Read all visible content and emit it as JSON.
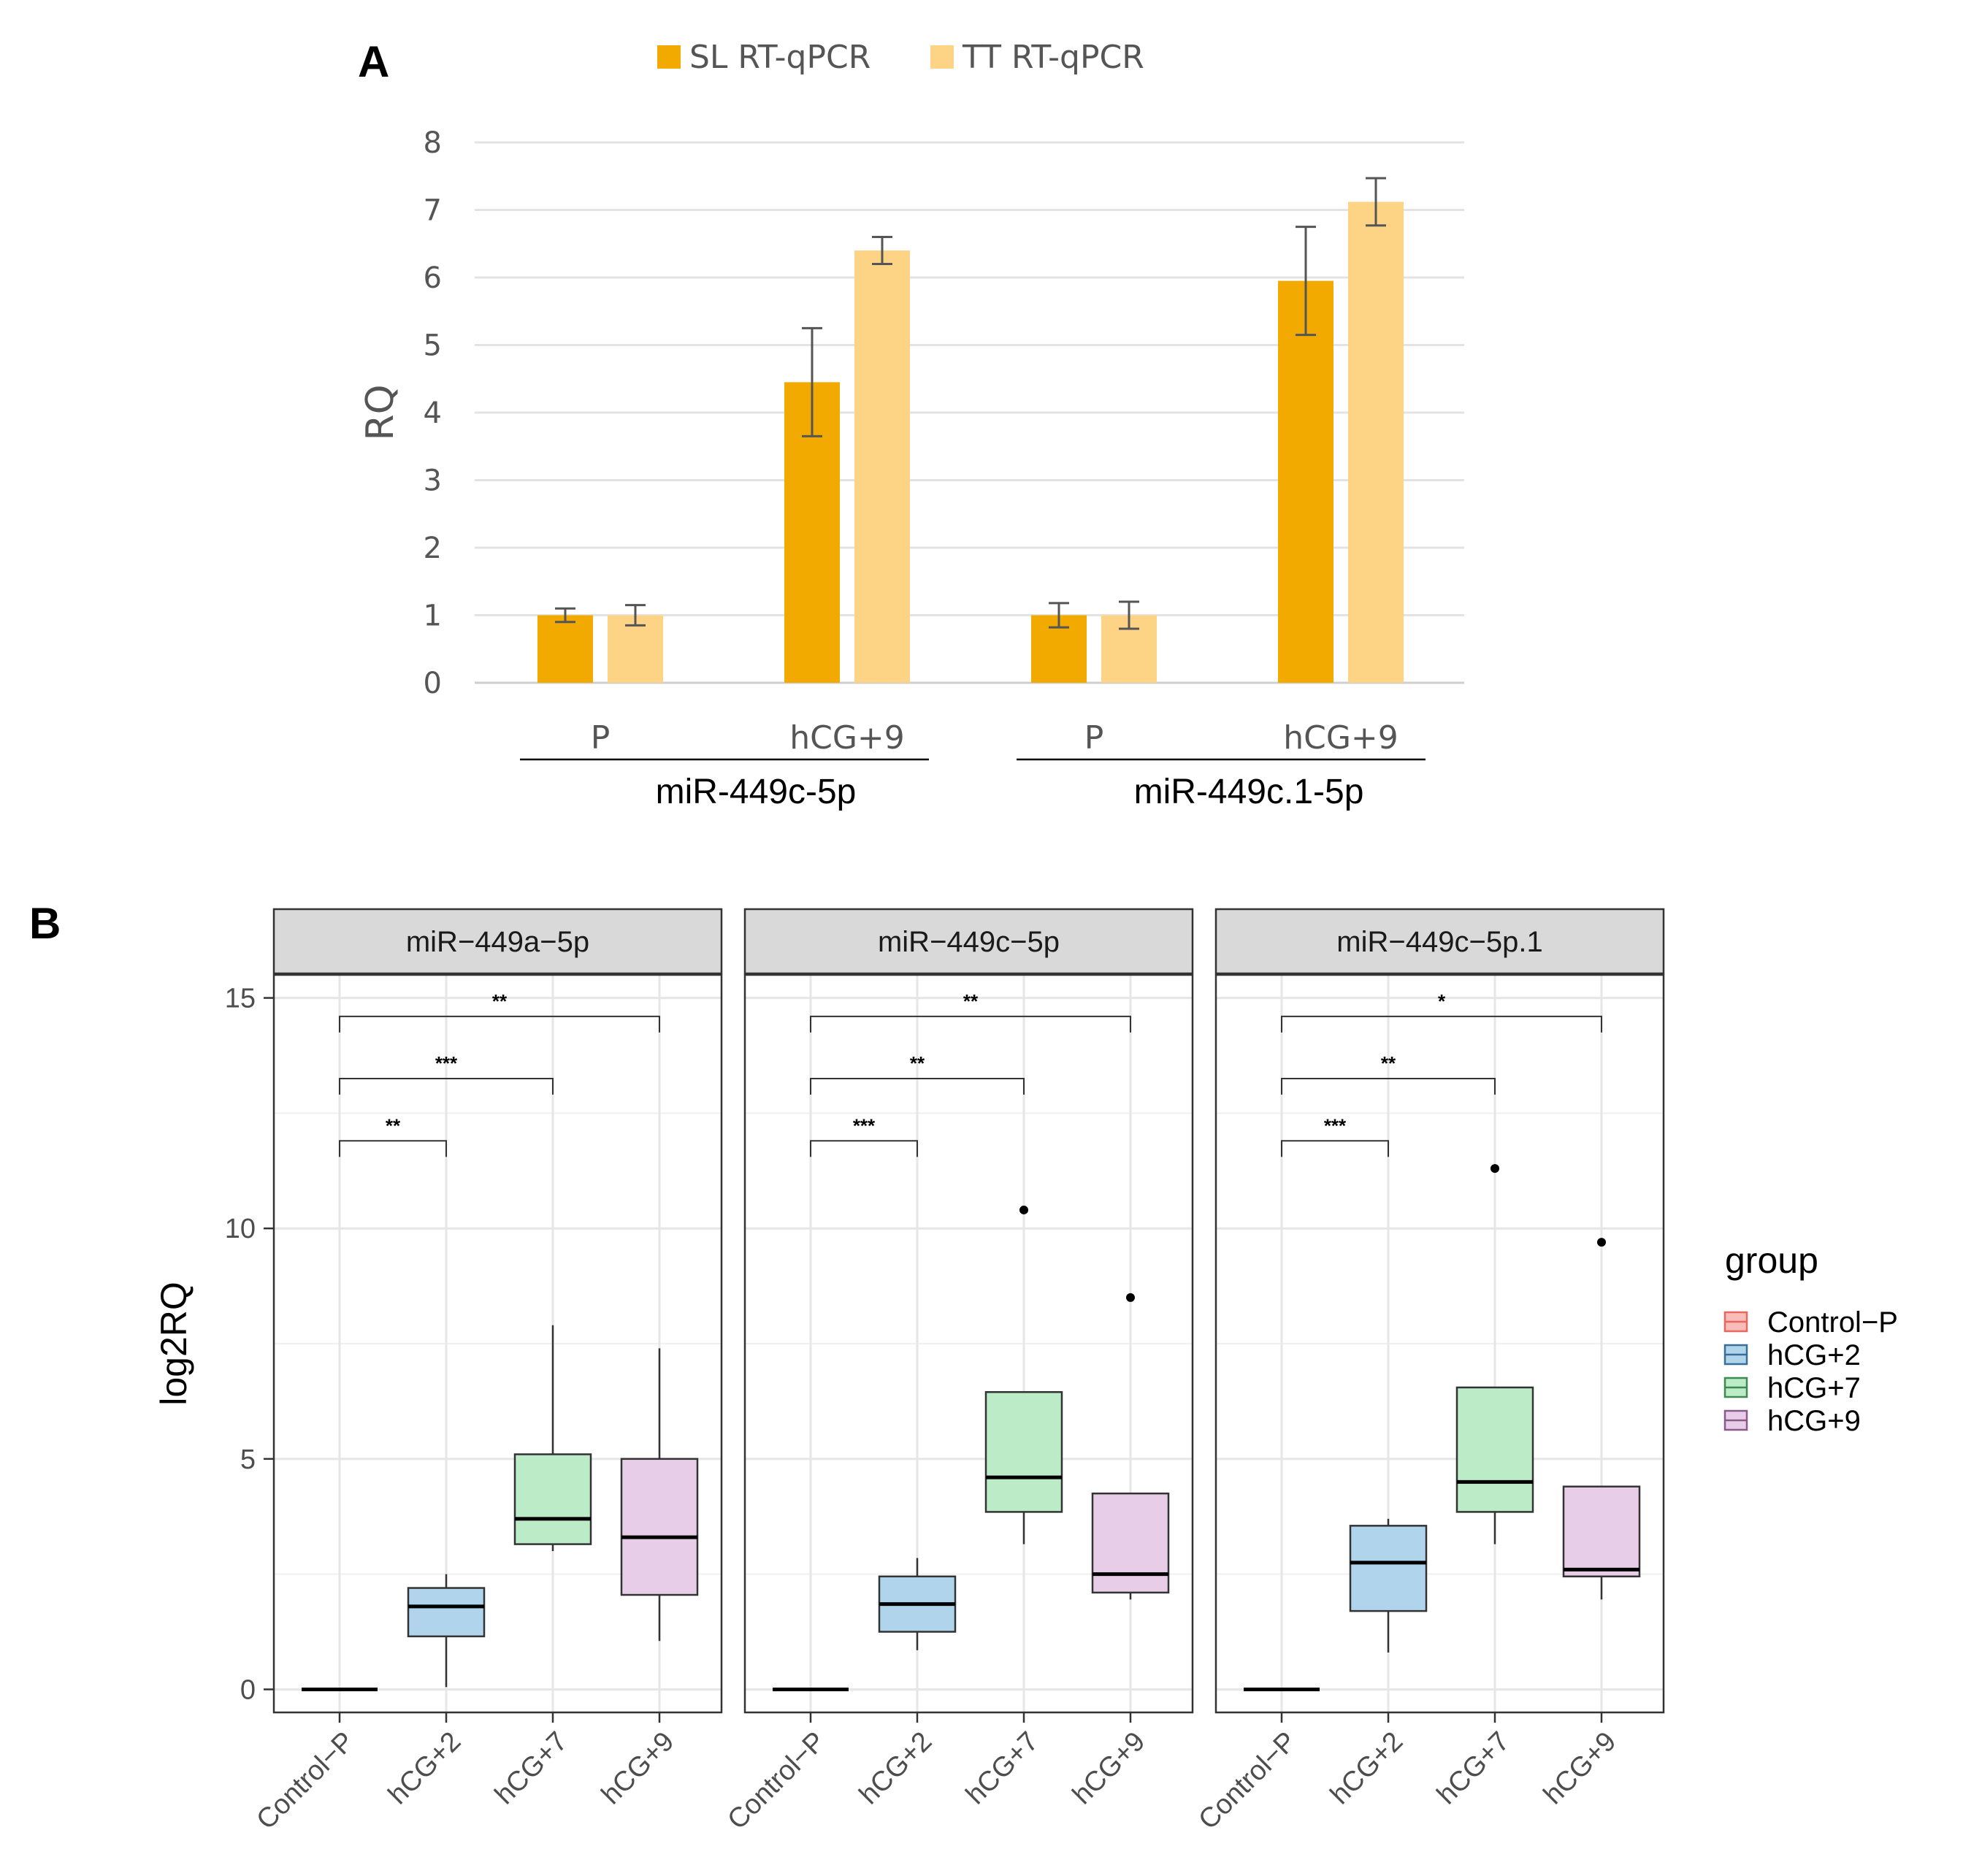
{
  "panel_a": {
    "letter": "A",
    "chart_data": {
      "type": "bar",
      "ylabel": "RQ",
      "ylim": [
        0,
        8
      ],
      "yticks": [
        "0",
        "1",
        "2",
        "3",
        "4",
        "5",
        "6",
        "7",
        "8"
      ],
      "grid": true,
      "legend_position": "top",
      "categories": [
        "P",
        "hCG+9",
        "P",
        "hCG+9"
      ],
      "groups": [
        {
          "label": "miR-449c-5p",
          "categories": [
            0,
            1
          ]
        },
        {
          "label": "miR-449c.1-5p",
          "categories": [
            2,
            3
          ]
        }
      ],
      "series": [
        {
          "name": "SL RT-qPCR",
          "color": "#f2a900",
          "values": [
            1.0,
            4.45,
            1.0,
            5.95
          ],
          "errors": [
            0.1,
            0.8,
            0.18,
            0.8
          ]
        },
        {
          "name": "TT RT-qPCR",
          "color": "#fdd385",
          "values": [
            1.0,
            6.4,
            1.0,
            7.12
          ],
          "errors": [
            0.15,
            0.2,
            0.2,
            0.35
          ]
        }
      ]
    }
  },
  "panel_b": {
    "letter": "B",
    "chart_data": {
      "type": "boxplot",
      "ylabel": "log2RQ",
      "ylim": [
        -0.5,
        15.5
      ],
      "yticks": [
        "0",
        "5",
        "10",
        "15"
      ],
      "categories": [
        "Control−P",
        "hCG+2",
        "hCG+7",
        "hCG+9"
      ],
      "legend": {
        "title": "group",
        "position": "right",
        "items": [
          {
            "label": "Control−P",
            "fill": "#f8bdb8",
            "stroke": "#e8675f"
          },
          {
            "label": "hCG+2",
            "fill": "#b0d4ec",
            "stroke": "#3a6f95"
          },
          {
            "label": "hCG+7",
            "fill": "#bcebc7",
            "stroke": "#3f8a50"
          },
          {
            "label": "hCG+9",
            "fill": "#e8cde8",
            "stroke": "#8a5a8a"
          }
        ]
      },
      "facets": [
        {
          "title": "miR−449a−5p",
          "boxes": [
            {
              "group": "Control−P",
              "min": 0,
              "q1": 0,
              "median": 0,
              "q3": 0,
              "max": 0,
              "outliers": []
            },
            {
              "group": "hCG+2",
              "min": 0.05,
              "q1": 1.15,
              "median": 1.8,
              "q3": 2.2,
              "max": 2.5,
              "outliers": []
            },
            {
              "group": "hCG+7",
              "min": 3.0,
              "q1": 3.15,
              "median": 3.7,
              "q3": 5.1,
              "max": 7.9,
              "outliers": []
            },
            {
              "group": "hCG+9",
              "min": 1.05,
              "q1": 2.05,
              "median": 3.3,
              "q3": 5.0,
              "max": 7.4,
              "outliers": []
            }
          ],
          "comparisons": [
            {
              "from": "Control−P",
              "to": "hCG+2",
              "y": 11.9,
              "label": "**"
            },
            {
              "from": "Control−P",
              "to": "hCG+7",
              "y": 13.25,
              "label": "***"
            },
            {
              "from": "Control−P",
              "to": "hCG+9",
              "y": 14.6,
              "label": "**"
            }
          ]
        },
        {
          "title": "miR−449c−5p",
          "boxes": [
            {
              "group": "Control−P",
              "min": 0,
              "q1": 0,
              "median": 0,
              "q3": 0,
              "max": 0,
              "outliers": []
            },
            {
              "group": "hCG+2",
              "min": 0.85,
              "q1": 1.25,
              "median": 1.85,
              "q3": 2.45,
              "max": 2.85,
              "outliers": []
            },
            {
              "group": "hCG+7",
              "min": 3.15,
              "q1": 3.85,
              "median": 4.6,
              "q3": 6.45,
              "max": 6.45,
              "outliers": [
                10.4
              ]
            },
            {
              "group": "hCG+9",
              "min": 1.95,
              "q1": 2.1,
              "median": 2.5,
              "q3": 4.25,
              "max": 4.25,
              "outliers": [
                8.5
              ]
            }
          ],
          "comparisons": [
            {
              "from": "Control−P",
              "to": "hCG+2",
              "y": 11.9,
              "label": "***"
            },
            {
              "from": "Control−P",
              "to": "hCG+7",
              "y": 13.25,
              "label": "**"
            },
            {
              "from": "Control−P",
              "to": "hCG+9",
              "y": 14.6,
              "label": "**"
            }
          ]
        },
        {
          "title": "miR−449c−5p.1",
          "boxes": [
            {
              "group": "Control−P",
              "min": 0,
              "q1": 0,
              "median": 0,
              "q3": 0,
              "max": 0,
              "outliers": []
            },
            {
              "group": "hCG+2",
              "min": 0.8,
              "q1": 1.7,
              "median": 2.75,
              "q3": 3.55,
              "max": 3.7,
              "outliers": []
            },
            {
              "group": "hCG+7",
              "min": 3.15,
              "q1": 3.85,
              "median": 4.5,
              "q3": 6.55,
              "max": 6.55,
              "outliers": [
                11.3
              ]
            },
            {
              "group": "hCG+9",
              "min": 1.95,
              "q1": 2.45,
              "median": 2.6,
              "q3": 4.4,
              "max": 4.4,
              "outliers": [
                9.7
              ]
            }
          ],
          "comparisons": [
            {
              "from": "Control−P",
              "to": "hCG+2",
              "y": 11.9,
              "label": "***"
            },
            {
              "from": "Control−P",
              "to": "hCG+7",
              "y": 13.25,
              "label": "**"
            },
            {
              "from": "Control−P",
              "to": "hCG+9",
              "y": 14.6,
              "label": "*"
            }
          ]
        }
      ]
    }
  }
}
